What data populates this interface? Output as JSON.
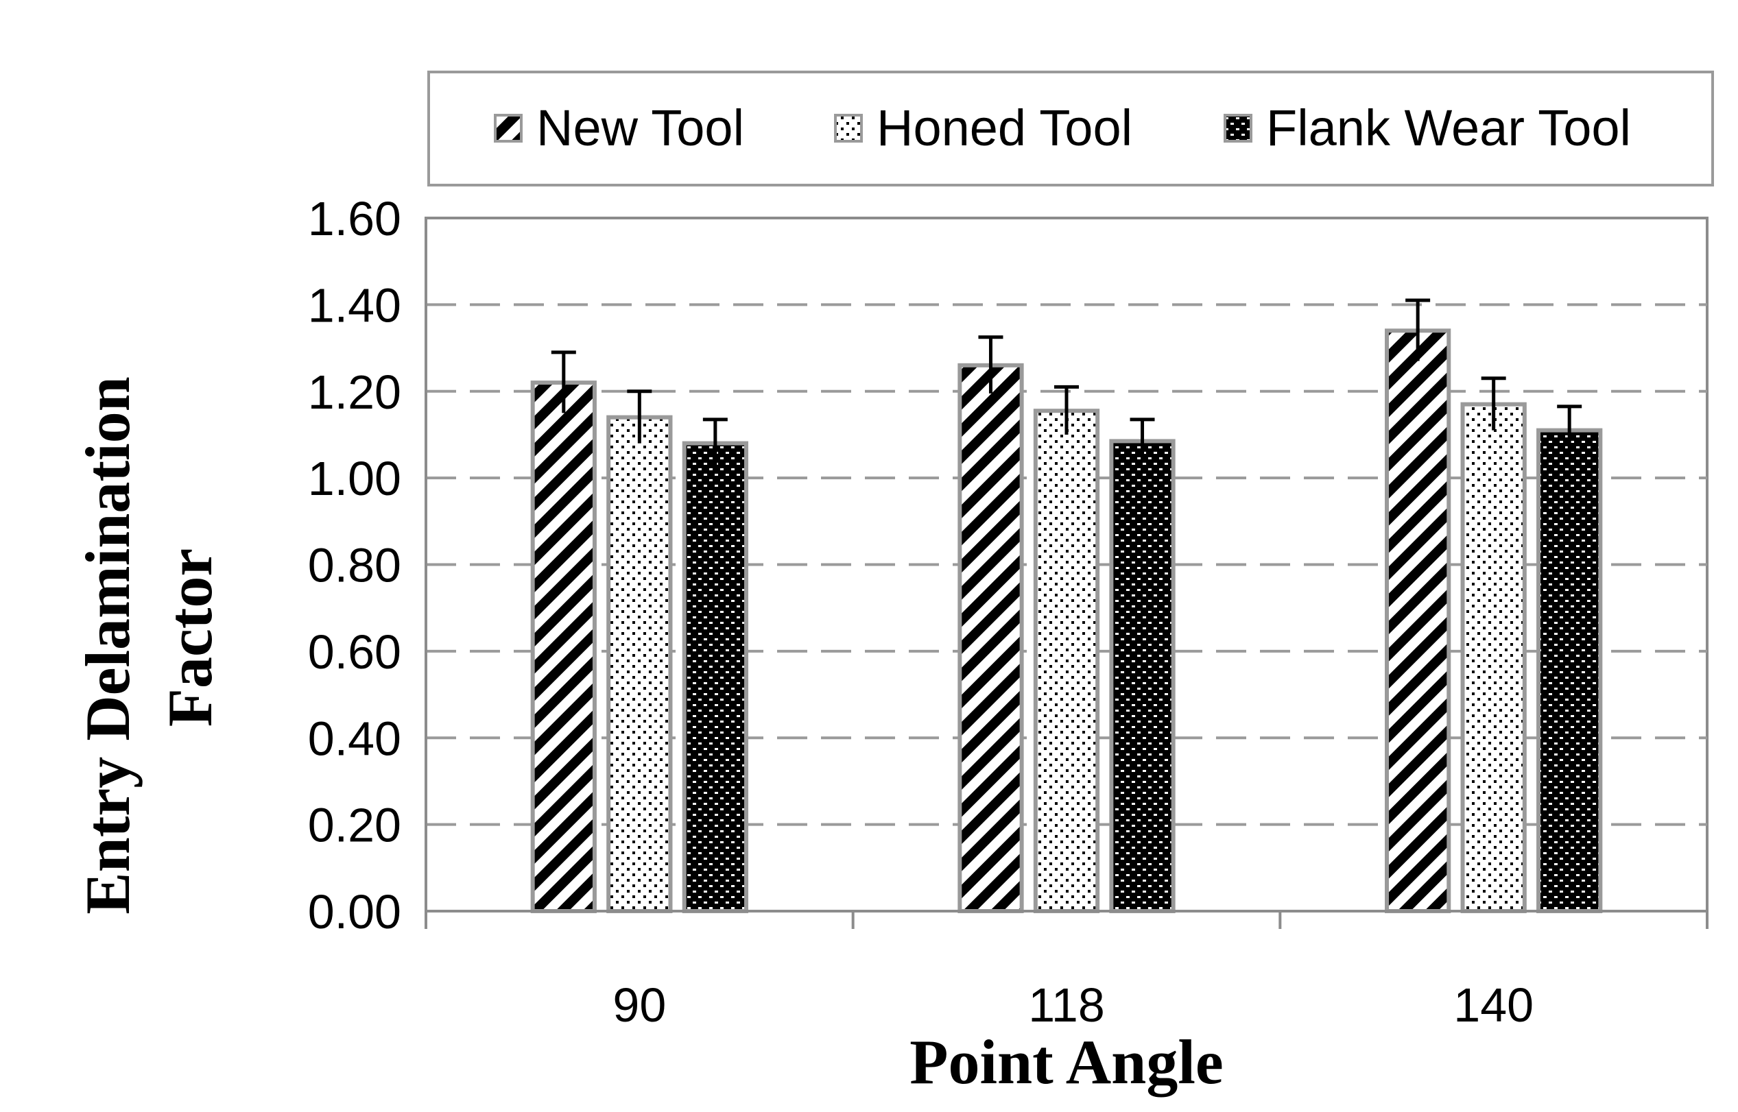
{
  "chart_data": {
    "type": "bar",
    "title": "",
    "xlabel": "Point Angle",
    "ylabel": "Entry Delamination Factor",
    "ylabel_lines": [
      "Entry Delamination",
      "Factor"
    ],
    "categories": [
      "90",
      "118",
      "140"
    ],
    "ylim": [
      0,
      1.6
    ],
    "yticks": [
      "0.00",
      "0.20",
      "0.40",
      "0.60",
      "0.80",
      "1.00",
      "1.20",
      "1.40",
      "1.60"
    ],
    "grid": "dashed horizontal",
    "legend_position": "top",
    "series": [
      {
        "name": "New Tool",
        "values": [
          1.22,
          1.26,
          1.34
        ],
        "errors": [
          0.07,
          0.065,
          0.07
        ],
        "pattern": "diagonal-stripes"
      },
      {
        "name": "Honed Tool",
        "values": [
          1.14,
          1.155,
          1.17
        ],
        "errors": [
          0.06,
          0.055,
          0.06
        ],
        "pattern": "dots"
      },
      {
        "name": "Flank Wear Tool",
        "values": [
          1.08,
          1.085,
          1.11
        ],
        "errors": [
          0.055,
          0.05,
          0.055
        ],
        "pattern": "dark-checker"
      }
    ]
  }
}
